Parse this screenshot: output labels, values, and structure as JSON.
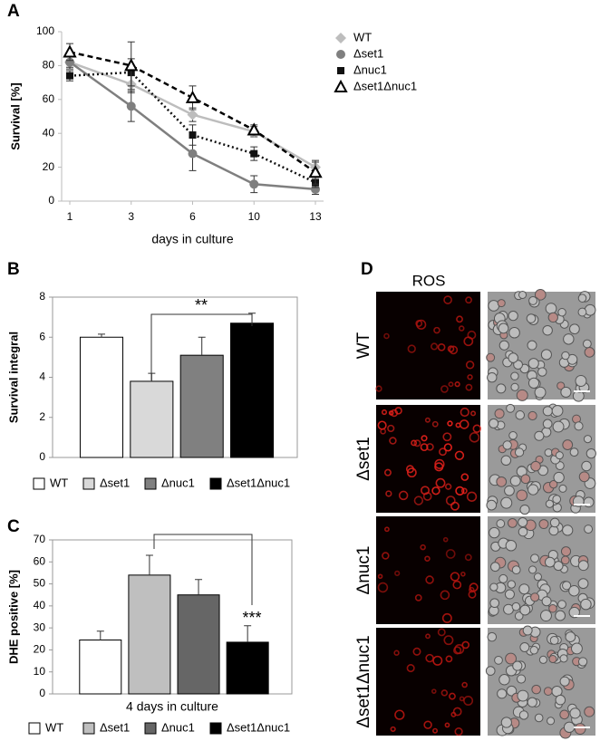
{
  "chart_data": [
    {
      "type": "line",
      "ylabel": "Survival [%]",
      "xlabel": "days in culture",
      "categories": [
        "1",
        "3",
        "6",
        "10",
        "13"
      ],
      "ylim": [
        0,
        100
      ],
      "yticks": [
        0,
        20,
        40,
        60,
        80,
        100
      ],
      "series": [
        {
          "name": "WT",
          "color": "#bdbdbd",
          "marker": "diamond",
          "dash": "solid",
          "values": [
            82,
            69,
            51,
            41,
            20
          ],
          "errors": [
            3,
            5,
            4,
            3,
            3
          ]
        },
        {
          "name": "Δset1",
          "color": "#7f7f7f",
          "marker": "circle",
          "dash": "solid",
          "values": [
            82,
            56,
            28,
            10,
            7
          ],
          "errors": [
            4,
            9,
            10,
            5,
            3
          ]
        },
        {
          "name": "Δnuc1",
          "color": "#111111",
          "marker": "square",
          "dash": "dotted",
          "values": [
            74,
            76,
            39,
            28,
            11
          ],
          "errors": [
            3,
            8,
            6,
            4,
            3
          ]
        },
        {
          "name": "Δset1Δnuc1",
          "color": "#000000",
          "marker": "triangle",
          "dash": "dashed",
          "values": [
            88,
            80,
            61,
            42,
            17
          ],
          "errors": [
            5,
            14,
            7,
            3,
            7
          ]
        }
      ]
    },
    {
      "type": "bar",
      "ylabel": "Survival integral",
      "annotation": "**",
      "categories": [
        "WT",
        "Δset1",
        "Δnuc1",
        "Δset1Δnuc1"
      ],
      "values": [
        6.0,
        3.8,
        5.1,
        6.7
      ],
      "errors": [
        0.15,
        0.4,
        0.9,
        0.5
      ],
      "colors": [
        "#ffffff",
        "#d9d9d9",
        "#808080",
        "#000000"
      ],
      "ylim": [
        0,
        8
      ],
      "yticks": [
        0,
        2,
        4,
        6,
        8
      ]
    },
    {
      "type": "bar",
      "ylabel": "DHE positive [%]",
      "xlabel": "4 days in culture",
      "annotation": "***",
      "categories": [
        "WT",
        "Δset1",
        "Δnuc1",
        "Δset1Δnuc1"
      ],
      "values": [
        24.5,
        54,
        45,
        23.5
      ],
      "errors": [
        4,
        9,
        7,
        7.5
      ],
      "colors": [
        "#ffffff",
        "#bfbfbf",
        "#666666",
        "#000000"
      ],
      "ylim": [
        0,
        70
      ],
      "yticks": [
        0,
        10,
        20,
        30,
        40,
        50,
        60,
        70
      ]
    }
  ],
  "panel_labels": [
    "A",
    "B",
    "C",
    "D"
  ],
  "micrographs": {
    "title": "ROS",
    "rows": [
      "WT",
      "Δset1",
      "Δnuc1",
      "Δset1Δnuc1"
    ]
  }
}
